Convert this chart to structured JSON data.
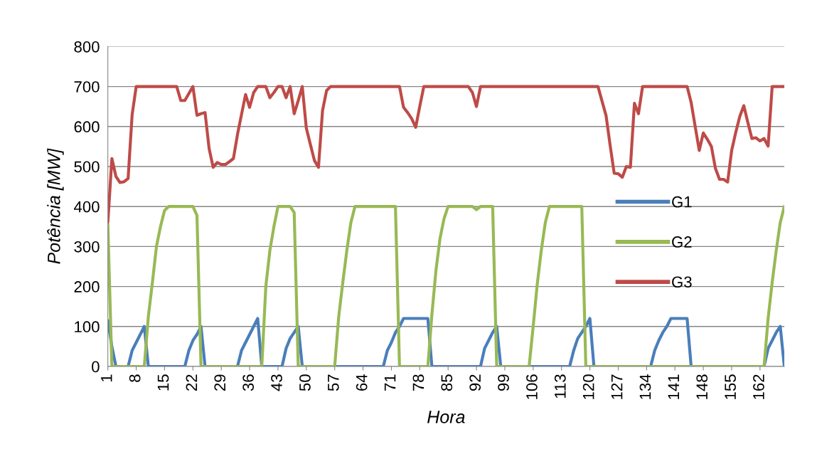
{
  "chart_data": {
    "type": "line",
    "xlabel": "Hora",
    "ylabel": "Potência [MW]",
    "xlim": [
      1,
      168
    ],
    "xticks": [
      1,
      8,
      15,
      22,
      29,
      36,
      43,
      50,
      57,
      64,
      71,
      78,
      85,
      92,
      99,
      106,
      113,
      120,
      127,
      134,
      141,
      148,
      155,
      162
    ],
    "ylim": [
      0,
      800
    ],
    "yticks": [
      0,
      100,
      200,
      300,
      400,
      500,
      600,
      700,
      800
    ],
    "grid": "y",
    "legend": "right",
    "marker": "none",
    "line_style": "solid",
    "series": [
      {
        "name": "G1",
        "color": "#4a7ebb",
        "x": [
          1,
          2,
          3,
          6,
          7,
          8,
          9,
          10,
          11,
          20,
          21,
          22,
          23,
          24,
          25,
          33,
          34,
          35,
          36,
          37,
          38,
          39,
          44,
          45,
          46,
          47,
          48,
          49,
          69,
          70,
          71,
          72,
          73,
          74,
          80,
          81,
          93,
          94,
          95,
          96,
          97,
          98,
          115,
          116,
          117,
          118,
          119,
          120,
          121,
          135,
          136,
          137,
          138,
          139,
          140,
          144,
          145,
          163,
          164,
          165,
          166,
          167,
          168
        ],
        "values": [
          115,
          50,
          0,
          0,
          40,
          60,
          80,
          100,
          0,
          0,
          40,
          65,
          80,
          100,
          0,
          0,
          40,
          60,
          80,
          100,
          120,
          0,
          0,
          45,
          70,
          85,
          100,
          0,
          0,
          40,
          60,
          85,
          100,
          120,
          120,
          0,
          0,
          45,
          65,
          85,
          100,
          0,
          0,
          40,
          70,
          85,
          100,
          120,
          0,
          0,
          40,
          65,
          85,
          100,
          120,
          120,
          0,
          0,
          45,
          65,
          85,
          100,
          0
        ]
      },
      {
        "name": "G2",
        "color": "#98b954",
        "x": [
          1,
          2,
          10,
          11,
          12,
          13,
          14,
          15,
          16,
          22,
          23,
          24,
          39,
          40,
          41,
          42,
          43,
          46,
          47,
          48,
          57,
          58,
          59,
          60,
          61,
          62,
          72,
          73,
          80,
          81,
          82,
          83,
          84,
          85,
          91,
          92,
          93,
          96,
          97,
          105,
          106,
          107,
          108,
          109,
          110,
          118,
          119,
          163,
          164,
          165,
          166,
          167,
          168
        ],
        "values": [
          355,
          0,
          0,
          125,
          210,
          300,
          350,
          390,
          400,
          400,
          378,
          0,
          0,
          200,
          290,
          350,
          400,
          400,
          385,
          0,
          0,
          125,
          210,
          290,
          360,
          400,
          400,
          0,
          0,
          130,
          240,
          320,
          370,
          400,
          400,
          392,
          400,
          400,
          0,
          0,
          100,
          205,
          290,
          360,
          400,
          400,
          0,
          0,
          120,
          210,
          290,
          360,
          400
        ]
      },
      {
        "name": "G3",
        "color": "#be4b48",
        "x": [
          1,
          2,
          3,
          4,
          5,
          6,
          7,
          8,
          18,
          19,
          20,
          22,
          23,
          24,
          25,
          26,
          27,
          28,
          29,
          30,
          31,
          32,
          33,
          34,
          35,
          36,
          37,
          38,
          40,
          41,
          42,
          43,
          44,
          45,
          46,
          47,
          48,
          49,
          50,
          51,
          52,
          53,
          54,
          55,
          56,
          73,
          74,
          75,
          76,
          77,
          78,
          79,
          90,
          91,
          92,
          93,
          122,
          124,
          125,
          126,
          127,
          128,
          129,
          130,
          131,
          132,
          133,
          144,
          145,
          146,
          147,
          148,
          149,
          150,
          151,
          152,
          153,
          154,
          155,
          156,
          157,
          158,
          159,
          160,
          161,
          162,
          163,
          164,
          165,
          168
        ],
        "values": [
          360,
          520,
          475,
          460,
          462,
          470,
          630,
          700,
          700,
          665,
          665,
          700,
          628,
          632,
          635,
          545,
          498,
          510,
          505,
          505,
          512,
          520,
          580,
          630,
          680,
          648,
          685,
          700,
          700,
          672,
          685,
          700,
          700,
          672,
          700,
          632,
          665,
          700,
          596,
          555,
          515,
          498,
          640,
          690,
          700,
          700,
          648,
          635,
          620,
          598,
          650,
          700,
          700,
          685,
          650,
          700,
          700,
          627,
          553,
          483,
          482,
          473,
          500,
          498,
          658,
          632,
          700,
          700,
          660,
          600,
          540,
          584,
          568,
          550,
          495,
          468,
          468,
          461,
          540,
          585,
          625,
          652,
          610,
          570,
          572,
          564,
          570,
          551,
          700,
          700
        ]
      }
    ]
  }
}
